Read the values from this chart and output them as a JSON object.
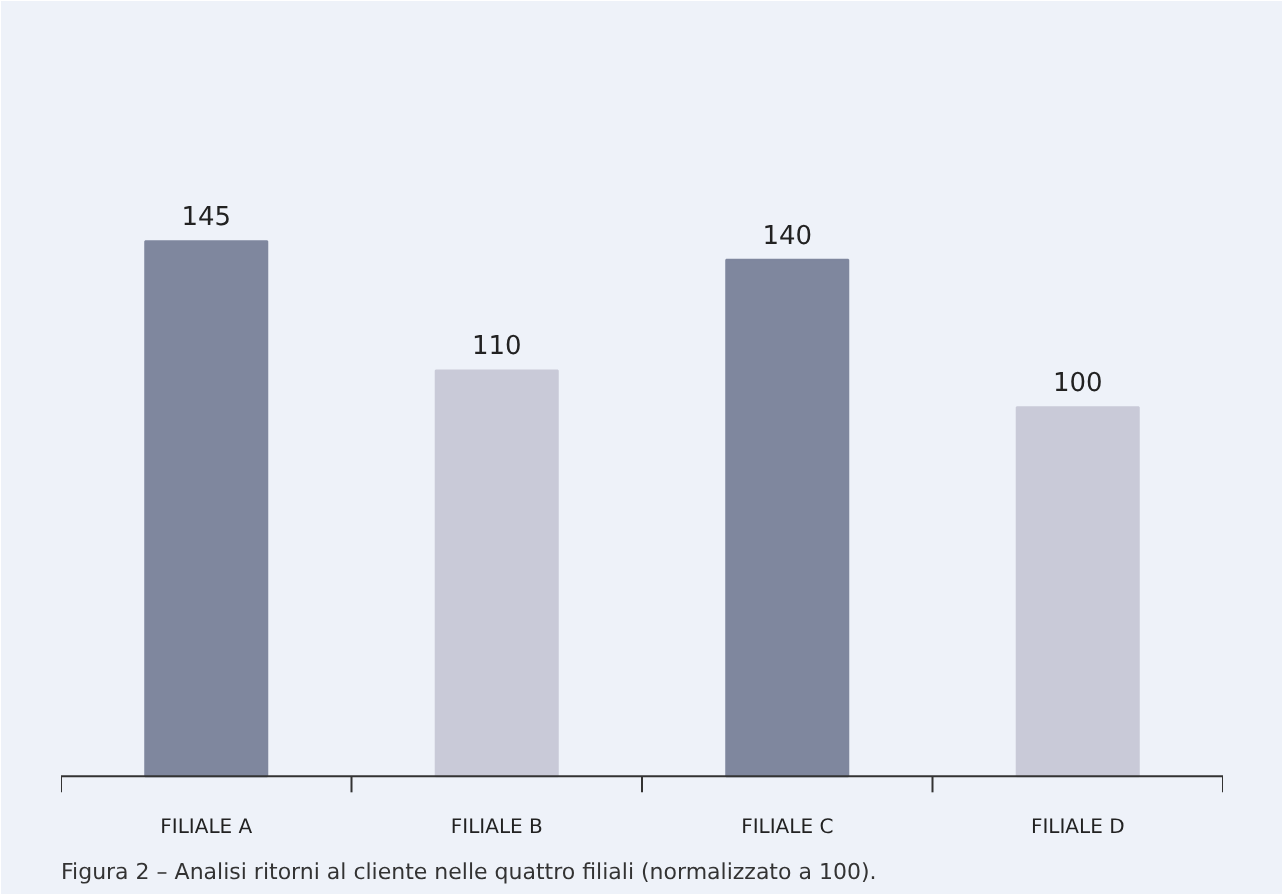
{
  "chart_data": {
    "type": "bar",
    "categories": [
      "FILIALE A",
      "FILIALE B",
      "FILIALE C",
      "FILIALE D"
    ],
    "values": [
      145,
      110,
      140,
      100
    ],
    "colors": [
      "#7f879e",
      "#c9cad8",
      "#7f879e",
      "#c9cad8"
    ],
    "data_labels": true,
    "grid": false,
    "annotations": [
      "Figura 2 – Analisi ritorni al cliente nelle quattro filiali (normalizzato a 100)."
    ]
  }
}
